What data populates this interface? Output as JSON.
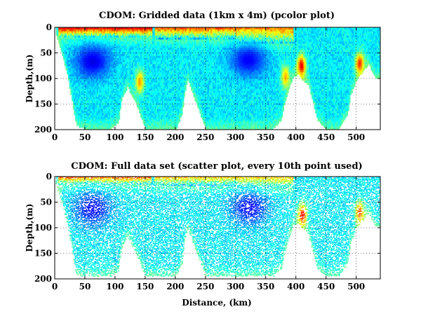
{
  "figure": {
    "background": "#ffffff"
  },
  "colormap": {
    "name": "jet",
    "low_color": "#00008f",
    "high_color": "#800000",
    "mid_color": "#7fff7f"
  },
  "chart_data": [
    {
      "type": "heatmap",
      "title": "CDOM: Gridded data (1km x 4m) (pcolor plot)",
      "xlabel": "",
      "ylabel": "Depth,(m)",
      "xlim": [
        0,
        540
      ],
      "ylim": [
        200,
        0
      ],
      "y_reversed": true,
      "xticks": [
        0,
        50,
        100,
        150,
        200,
        250,
        300,
        350,
        400,
        450,
        500
      ],
      "yticks": [
        0,
        50,
        100,
        150,
        200
      ],
      "grid": true,
      "cell_size": {
        "x_km": 1,
        "y_m": 4
      },
      "bottom_depth_profile": {
        "x": [
          0,
          5,
          10,
          20,
          35,
          50,
          90,
          105,
          110,
          120,
          135,
          150,
          160,
          175,
          200,
          210,
          215,
          220,
          235,
          250,
          295,
          330,
          360,
          375,
          380,
          390,
          395,
          405,
          410,
          420,
          435,
          450,
          470,
          485,
          490,
          500,
          510,
          520,
          530,
          540
        ],
        "depth": [
          5,
          25,
          45,
          90,
          190,
          198,
          198,
          185,
          140,
          115,
          150,
          198,
          198,
          198,
          198,
          170,
          125,
          100,
          150,
          198,
          198,
          198,
          198,
          180,
          150,
          110,
          95,
          90,
          100,
          110,
          180,
          198,
          198,
          170,
          130,
          100,
          85,
          70,
          95,
          100
        ]
      },
      "features": [
        {
          "kind": "surface-high",
          "x_range": [
            5,
            160
          ],
          "depth_range": [
            0,
            18
          ],
          "level": 0.88
        },
        {
          "kind": "surface-high",
          "x_range": [
            165,
            300
          ],
          "depth_range": [
            0,
            20
          ],
          "level": 0.78
        },
        {
          "kind": "surface-high",
          "x_range": [
            300,
            395
          ],
          "depth_range": [
            0,
            30
          ],
          "level": 0.75
        },
        {
          "kind": "low-core",
          "x_center": 62,
          "depth_center": 65,
          "level": 0.1
        },
        {
          "kind": "low-core",
          "x_center": 320,
          "depth_center": 62,
          "level": 0.12
        },
        {
          "kind": "edge-high",
          "x_center": 408,
          "depth_center": 75,
          "level": 0.92
        },
        {
          "kind": "edge-high",
          "x_center": 505,
          "depth_center": 70,
          "level": 0.85
        },
        {
          "kind": "edge-high",
          "x_center": 140,
          "depth_center": 105,
          "level": 0.72
        },
        {
          "kind": "edge-high",
          "x_center": 382,
          "depth_center": 95,
          "level": 0.7
        }
      ]
    },
    {
      "type": "scatter",
      "title": "CDOM: Full data set (scatter plot, every 10th point used)",
      "xlabel": "Distance, (km)",
      "ylabel": "Depth,(m)",
      "xlim": [
        0,
        540
      ],
      "ylim": [
        200,
        0
      ],
      "y_reversed": true,
      "xticks": [
        0,
        50,
        100,
        150,
        200,
        250,
        300,
        350,
        400,
        450,
        500
      ],
      "yticks": [
        0,
        50,
        100,
        150,
        200
      ],
      "grid": true,
      "sampling": "every 10th point",
      "bottom_depth_profile": {
        "x": [
          0,
          5,
          10,
          20,
          35,
          50,
          90,
          105,
          110,
          120,
          135,
          150,
          160,
          175,
          200,
          210,
          215,
          220,
          235,
          250,
          295,
          330,
          360,
          375,
          380,
          390,
          395,
          405,
          410,
          420,
          435,
          450,
          470,
          485,
          490,
          500,
          510,
          520,
          530,
          540
        ],
        "depth": [
          5,
          25,
          45,
          90,
          190,
          195,
          195,
          185,
          140,
          115,
          150,
          195,
          195,
          195,
          195,
          170,
          125,
          100,
          150,
          195,
          195,
          195,
          195,
          180,
          150,
          110,
          95,
          90,
          100,
          110,
          180,
          195,
          195,
          170,
          130,
          100,
          85,
          70,
          95,
          100
        ]
      },
      "features": [
        {
          "kind": "surface-high",
          "x_range": [
            5,
            160
          ],
          "depth_range": [
            0,
            14
          ],
          "level": 0.8
        },
        {
          "kind": "surface-high",
          "x_range": [
            165,
            300
          ],
          "depth_range": [
            0,
            16
          ],
          "level": 0.68
        },
        {
          "kind": "surface-high",
          "x_range": [
            300,
            395
          ],
          "depth_range": [
            0,
            22
          ],
          "level": 0.68
        },
        {
          "kind": "low-core",
          "x_center": 62,
          "depth_center": 62,
          "level": 0.12
        },
        {
          "kind": "low-core",
          "x_center": 322,
          "depth_center": 60,
          "level": 0.12
        },
        {
          "kind": "edge-high",
          "x_center": 410,
          "depth_center": 75,
          "level": 0.9
        },
        {
          "kind": "edge-high",
          "x_center": 505,
          "depth_center": 70,
          "level": 0.82
        }
      ]
    }
  ]
}
